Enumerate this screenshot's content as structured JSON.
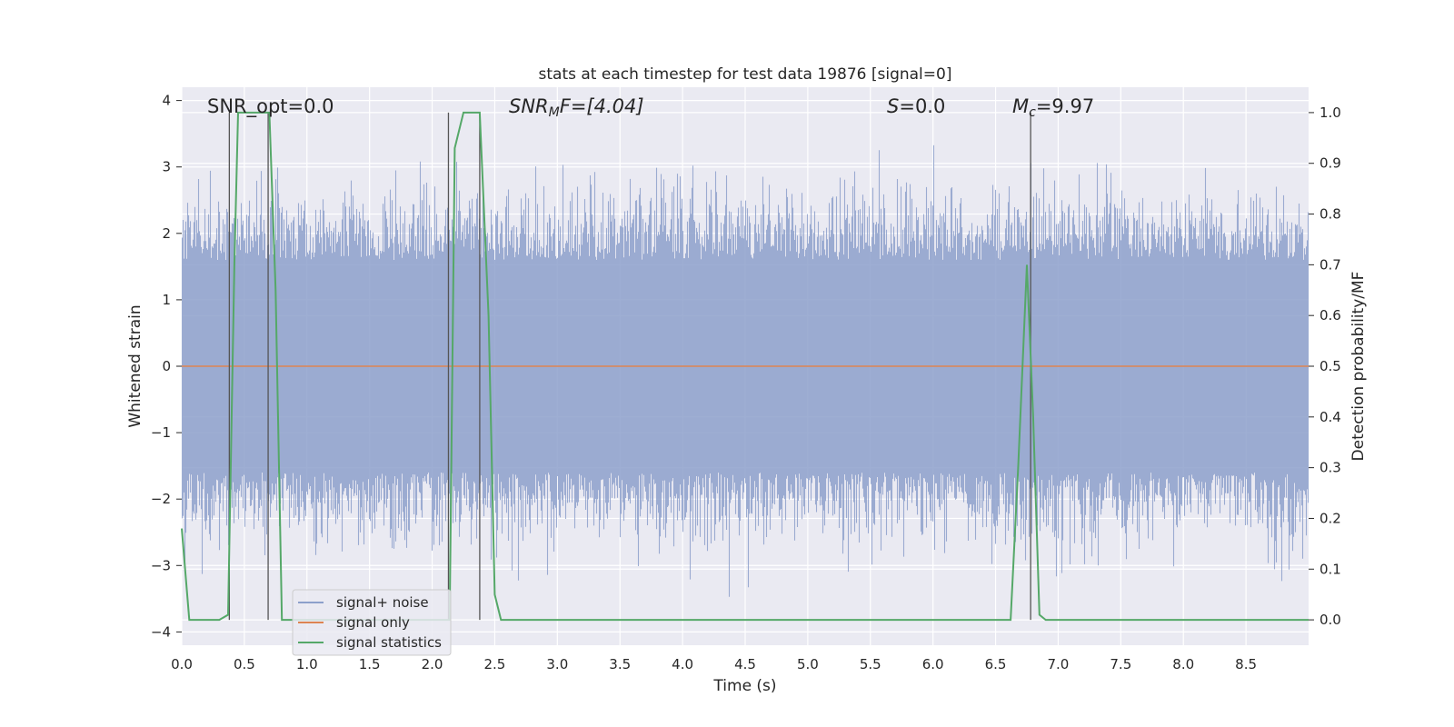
{
  "chart_data": {
    "type": "line",
    "title": "stats at each timestep for test data 19876 [signal=0]",
    "xlabel": "Time (s)",
    "ylabel": "Whitened strain",
    "y2label": "Detection probability/MF",
    "xlim": [
      0.0,
      9.0
    ],
    "ylim": [
      -4.2,
      4.2
    ],
    "y2lim": [
      -0.05,
      1.05
    ],
    "xticks": [
      "0.0",
      "0.5",
      "1.0",
      "1.5",
      "2.0",
      "2.5",
      "3.0",
      "3.5",
      "4.0",
      "4.5",
      "5.0",
      "5.5",
      "6.0",
      "6.5",
      "7.0",
      "7.5",
      "8.0",
      "8.5"
    ],
    "yticks": [
      "4",
      "3",
      "2",
      "1",
      "0",
      "−1",
      "−2",
      "−3",
      "−4"
    ],
    "y2ticks": [
      "1.0",
      "0.9",
      "0.8",
      "0.7",
      "0.6",
      "0.5",
      "0.4",
      "0.3",
      "0.2",
      "0.1",
      "0.0"
    ],
    "grid": true,
    "legend_position": "lower-left",
    "annotations": {
      "snr_opt": "SNR_opt=0.0",
      "snr_mf_symbol": "SNR",
      "snr_mf_sub": "M",
      "snr_mf_rest": "F=[4.04]",
      "s_symbol": "S",
      "s_rest": "=0.0",
      "mc_symbol": "M",
      "mc_sub": "c",
      "mc_rest": "=9.97"
    },
    "series": [
      {
        "name": "signal+ noise",
        "color": "#8da0cb",
        "description": "noise band between about -2.0 and 2.0",
        "envelope": [
          -2.0,
          2.0
        ]
      },
      {
        "name": "signal only",
        "color": "#dd8452",
        "values_const": 0.0
      },
      {
        "name": "signal statistics",
        "color": "#55a868",
        "axis": "right",
        "x": [
          0.0,
          0.06,
          0.12,
          0.2,
          0.3,
          0.37,
          0.42,
          0.45,
          0.5,
          0.6,
          0.68,
          0.7,
          0.75,
          0.8,
          0.85,
          0.9,
          1.0,
          2.0,
          2.1,
          2.14,
          2.18,
          2.25,
          2.3,
          2.38,
          2.45,
          2.5,
          2.55,
          3.0,
          4.0,
          5.0,
          6.0,
          6.5,
          6.62,
          6.68,
          6.75,
          6.8,
          6.85,
          6.9,
          7.0,
          8.0,
          9.0
        ],
        "y": [
          0.18,
          0.0,
          0.0,
          0.0,
          0.0,
          0.01,
          0.7,
          1.0,
          1.0,
          1.0,
          1.0,
          1.0,
          0.65,
          0.0,
          0.0,
          0.0,
          0.0,
          0.0,
          0.0,
          0.0,
          0.93,
          1.0,
          1.0,
          1.0,
          0.6,
          0.05,
          0.0,
          0.0,
          0.0,
          0.0,
          0.0,
          0.0,
          0.0,
          0.3,
          0.7,
          0.4,
          0.01,
          0.0,
          0.0,
          0.0,
          0.0
        ]
      }
    ],
    "vertical_markers_x": [
      0.38,
      0.69,
      2.13,
      2.38,
      6.78
    ]
  }
}
